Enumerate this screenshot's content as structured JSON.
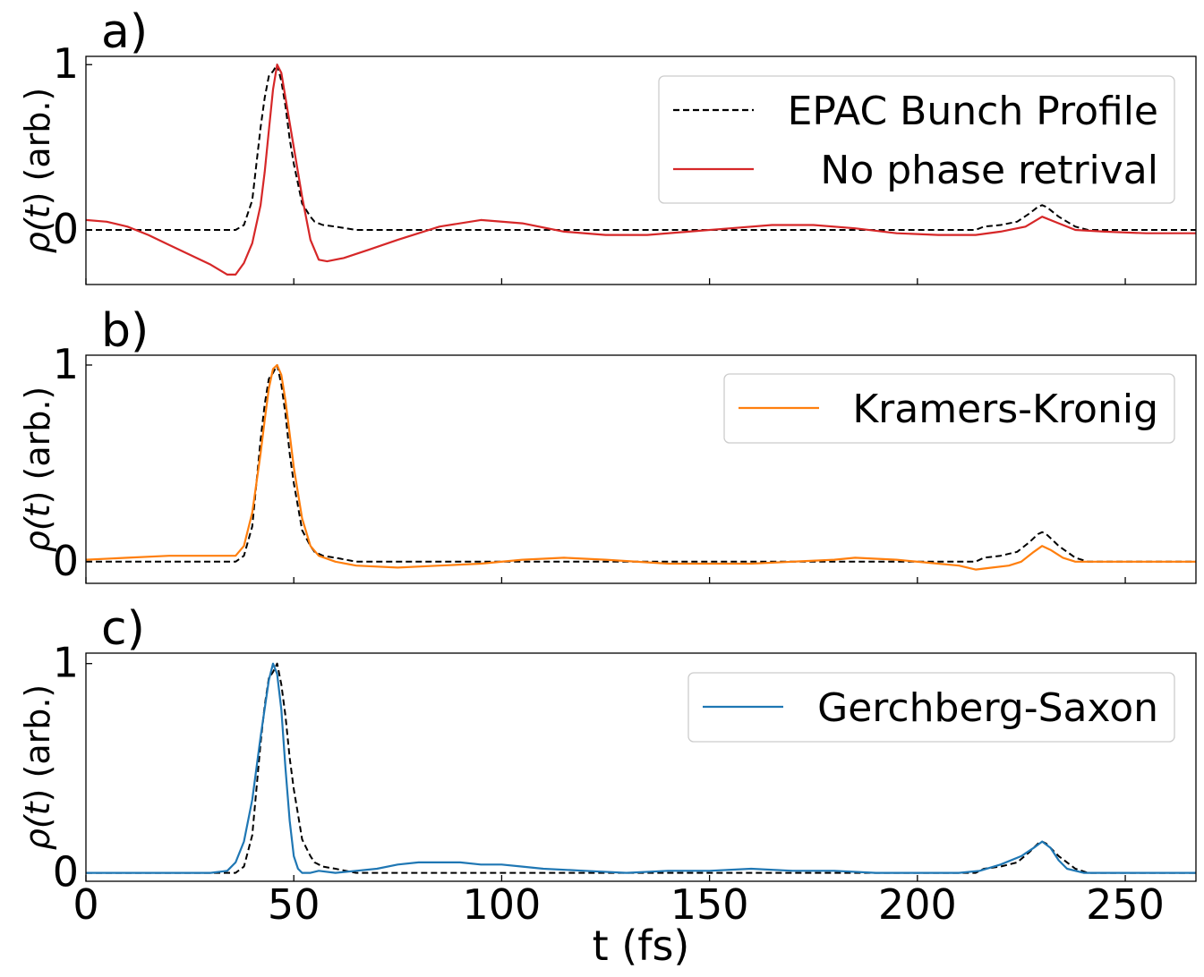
{
  "figure": {
    "xlabel": "t (fs)",
    "xlim": [
      0,
      267
    ],
    "xticks": [
      0,
      50,
      100,
      150,
      200,
      250
    ],
    "ylabel_prefix": "ρ(",
    "ylabel_var": "t",
    "ylabel_suffix": ") (arb.)"
  },
  "chart_data": [
    {
      "type": "line",
      "panel_label": "a)",
      "xlabel": "",
      "ylabel": "ρ(t) (arb.)",
      "xlim": [
        0,
        267
      ],
      "ylim": [
        -0.33,
        1.05
      ],
      "yticks": [
        0,
        1
      ],
      "legend": "top-right",
      "series": [
        {
          "name": "EPAC Bunch Profile",
          "color": "#000000",
          "style": "dashed",
          "x": [
            0,
            36,
            38,
            40,
            42,
            43,
            44,
            45,
            46,
            47,
            48,
            49,
            50,
            51,
            52,
            53,
            54,
            55,
            57,
            60,
            65,
            100,
            150,
            200,
            214,
            216,
            220,
            224,
            227,
            229,
            230,
            231,
            232,
            234,
            236,
            238,
            241,
            267
          ],
          "values": [
            0,
            0,
            0.03,
            0.18,
            0.62,
            0.8,
            0.93,
            0.96,
            1.0,
            0.9,
            0.75,
            0.55,
            0.4,
            0.28,
            0.16,
            0.12,
            0.08,
            0.05,
            0.03,
            0.02,
            0.0,
            0.0,
            0.0,
            0.0,
            0.0,
            0.02,
            0.03,
            0.05,
            0.1,
            0.14,
            0.15,
            0.14,
            0.12,
            0.08,
            0.05,
            0.02,
            0.0,
            0.0
          ]
        },
        {
          "name": "No phase retrival",
          "color": "#d62728",
          "style": "solid",
          "x": [
            0,
            5,
            10,
            15,
            20,
            25,
            30,
            34,
            36,
            38,
            40,
            42,
            43,
            44,
            45,
            46,
            47,
            48,
            50,
            52,
            54,
            56,
            58,
            62,
            68,
            75,
            85,
            95,
            105,
            115,
            125,
            135,
            145,
            155,
            165,
            175,
            185,
            195,
            205,
            214,
            220,
            226,
            230,
            234,
            238,
            245,
            255,
            267
          ],
          "values": [
            0.06,
            0.05,
            0.02,
            -0.03,
            -0.09,
            -0.15,
            -0.21,
            -0.27,
            -0.27,
            -0.2,
            -0.08,
            0.15,
            0.35,
            0.6,
            0.85,
            1.0,
            0.95,
            0.8,
            0.5,
            0.2,
            -0.06,
            -0.18,
            -0.19,
            -0.17,
            -0.12,
            -0.06,
            0.02,
            0.06,
            0.04,
            -0.01,
            -0.03,
            -0.03,
            -0.01,
            0.01,
            0.03,
            0.03,
            0.01,
            -0.02,
            -0.03,
            -0.03,
            -0.01,
            0.02,
            0.08,
            0.04,
            0.0,
            -0.01,
            -0.02,
            -0.02
          ]
        }
      ]
    },
    {
      "type": "line",
      "panel_label": "b)",
      "xlabel": "",
      "ylabel": "ρ(t) (arb.)",
      "xlim": [
        0,
        267
      ],
      "ylim": [
        -0.11,
        1.05
      ],
      "yticks": [
        0,
        1
      ],
      "legend": "top-right",
      "series": [
        {
          "name": "",
          "color": "#000000",
          "style": "dashed",
          "x": [
            0,
            36,
            38,
            40,
            42,
            43,
            44,
            45,
            46,
            47,
            48,
            49,
            50,
            51,
            52,
            53,
            54,
            55,
            57,
            60,
            65,
            100,
            150,
            200,
            214,
            216,
            220,
            224,
            227,
            229,
            230,
            231,
            232,
            234,
            236,
            238,
            241,
            267
          ],
          "values": [
            0,
            0,
            0.03,
            0.18,
            0.62,
            0.8,
            0.93,
            0.96,
            1.0,
            0.9,
            0.75,
            0.55,
            0.4,
            0.28,
            0.16,
            0.12,
            0.08,
            0.05,
            0.03,
            0.02,
            0.0,
            0.0,
            0.0,
            0.0,
            0.0,
            0.02,
            0.03,
            0.05,
            0.1,
            0.14,
            0.15,
            0.14,
            0.12,
            0.08,
            0.05,
            0.02,
            0.0,
            0.0
          ]
        },
        {
          "name": "Kramers-Kronig",
          "color": "#ff7f0e",
          "style": "solid",
          "x": [
            0,
            10,
            20,
            30,
            36,
            38,
            40,
            42,
            43,
            44,
            45,
            46,
            47,
            48,
            49,
            50,
            52,
            54,
            56,
            60,
            65,
            75,
            85,
            95,
            105,
            115,
            125,
            140,
            150,
            160,
            170,
            180,
            185,
            195,
            205,
            210,
            214,
            218,
            222,
            225,
            228,
            230,
            232,
            235,
            238,
            245,
            255,
            267
          ],
          "values": [
            0.01,
            0.02,
            0.03,
            0.03,
            0.03,
            0.08,
            0.25,
            0.55,
            0.72,
            0.88,
            0.98,
            1.0,
            0.95,
            0.82,
            0.65,
            0.48,
            0.22,
            0.08,
            0.03,
            0.0,
            -0.02,
            -0.03,
            -0.02,
            -0.01,
            0.01,
            0.02,
            0.01,
            -0.01,
            -0.01,
            -0.01,
            0.0,
            0.01,
            0.02,
            0.01,
            -0.01,
            -0.02,
            -0.04,
            -0.03,
            -0.02,
            0.0,
            0.05,
            0.08,
            0.06,
            0.02,
            0.0,
            0.0,
            0.0,
            0.0
          ]
        }
      ]
    },
    {
      "type": "line",
      "panel_label": "c)",
      "xlabel": "t (fs)",
      "ylabel": "ρ(t) (arb.)",
      "xlim": [
        0,
        267
      ],
      "ylim": [
        -0.04,
        1.05
      ],
      "yticks": [
        0,
        1
      ],
      "legend": "top-right",
      "series": [
        {
          "name": "",
          "color": "#000000",
          "style": "dashed",
          "x": [
            0,
            36,
            38,
            40,
            42,
            43,
            44,
            45,
            46,
            47,
            48,
            49,
            50,
            51,
            52,
            53,
            54,
            55,
            57,
            60,
            65,
            100,
            150,
            200,
            214,
            216,
            220,
            224,
            227,
            229,
            230,
            231,
            232,
            234,
            236,
            238,
            241,
            267
          ],
          "values": [
            0,
            0,
            0.03,
            0.18,
            0.62,
            0.8,
            0.93,
            0.96,
            1.0,
            0.9,
            0.75,
            0.55,
            0.4,
            0.28,
            0.16,
            0.12,
            0.08,
            0.05,
            0.03,
            0.02,
            0.0,
            0.0,
            0.0,
            0.0,
            0.0,
            0.02,
            0.03,
            0.05,
            0.1,
            0.14,
            0.15,
            0.14,
            0.12,
            0.08,
            0.05,
            0.02,
            0.0,
            0.0
          ]
        },
        {
          "name": "Gerchberg-Saxon",
          "color": "#1f77b4",
          "style": "solid",
          "x": [
            0,
            30,
            34,
            36,
            38,
            40,
            42,
            44,
            45,
            46,
            47,
            48,
            49,
            50,
            51,
            52,
            54,
            56,
            60,
            65,
            70,
            75,
            80,
            85,
            90,
            95,
            100,
            105,
            110,
            120,
            130,
            140,
            150,
            160,
            170,
            180,
            190,
            200,
            210,
            215,
            220,
            225,
            228,
            230,
            232,
            234,
            236,
            240,
            250,
            267
          ],
          "values": [
            0,
            0,
            0.01,
            0.05,
            0.15,
            0.35,
            0.65,
            0.92,
            1.0,
            0.95,
            0.78,
            0.5,
            0.25,
            0.08,
            0.02,
            0.0,
            0.0,
            0.01,
            0.0,
            0.01,
            0.02,
            0.04,
            0.05,
            0.05,
            0.05,
            0.04,
            0.04,
            0.03,
            0.02,
            0.01,
            0.0,
            0.01,
            0.01,
            0.02,
            0.01,
            0.01,
            0.0,
            0.0,
            0.0,
            0.01,
            0.04,
            0.08,
            0.12,
            0.15,
            0.12,
            0.06,
            0.02,
            0.0,
            0.0,
            0.0
          ]
        }
      ]
    }
  ]
}
